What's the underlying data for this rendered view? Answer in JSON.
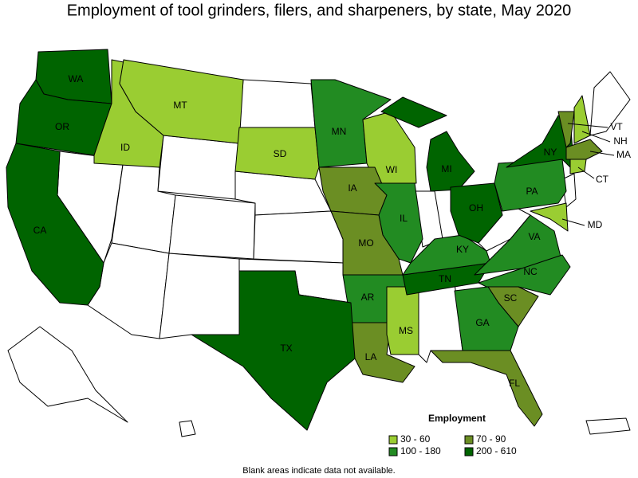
{
  "title": "Employment of tool grinders, filers, and sharpeners, by state, May 2020",
  "states": [
    {
      "label": "WA",
      "color": "#006400"
    },
    {
      "label": "OR",
      "color": "#006400"
    },
    {
      "label": "CA",
      "color": "#006400"
    },
    {
      "label": "ID",
      "color": "#9acd32"
    },
    {
      "label": "MT",
      "color": "#9acd32"
    },
    {
      "label": "SD",
      "color": "#9acd32"
    },
    {
      "label": "MN",
      "color": "#228b22"
    },
    {
      "label": "WI",
      "color": "#9acd32"
    },
    {
      "label": "MI",
      "color": "#006400"
    },
    {
      "label": "IA",
      "color": "#6b8e23"
    },
    {
      "label": "IL",
      "color": "#228b22"
    },
    {
      "label": "MO",
      "color": "#6b8e23"
    },
    {
      "label": "AR",
      "color": "#228b22"
    },
    {
      "label": "LA",
      "color": "#6b8e23"
    },
    {
      "label": "MS",
      "color": "#9acd32"
    },
    {
      "label": "TX",
      "color": "#006400"
    },
    {
      "label": "TN",
      "color": "#006400"
    },
    {
      "label": "KY",
      "color": "#228b22"
    },
    {
      "label": "OH",
      "color": "#006400"
    },
    {
      "label": "PA",
      "color": "#228b22"
    },
    {
      "label": "NY",
      "color": "#006400"
    },
    {
      "label": "VA",
      "color": "#228b22"
    },
    {
      "label": "NC",
      "color": "#228b22"
    },
    {
      "label": "SC",
      "color": "#6b8e23"
    },
    {
      "label": "GA",
      "color": "#228b22"
    },
    {
      "label": "FL",
      "color": "#6b8e23"
    },
    {
      "label": "VT",
      "color": "#6b8e23"
    },
    {
      "label": "NH",
      "color": "#9acd32"
    },
    {
      "label": "MA",
      "color": "#6b8e23"
    },
    {
      "label": "CT",
      "color": "#9acd32"
    },
    {
      "label": "MD",
      "color": "#9acd32"
    }
  ],
  "legend": {
    "title": "Employment",
    "items": [
      {
        "label": "30 - 60",
        "color": "#9acd32"
      },
      {
        "label": "70 - 90",
        "color": "#6b8e23"
      },
      {
        "label": "100 - 180",
        "color": "#228b22"
      },
      {
        "label": "200 - 610",
        "color": "#006400"
      }
    ]
  },
  "footnote": "Blank areas indicate data not available."
}
